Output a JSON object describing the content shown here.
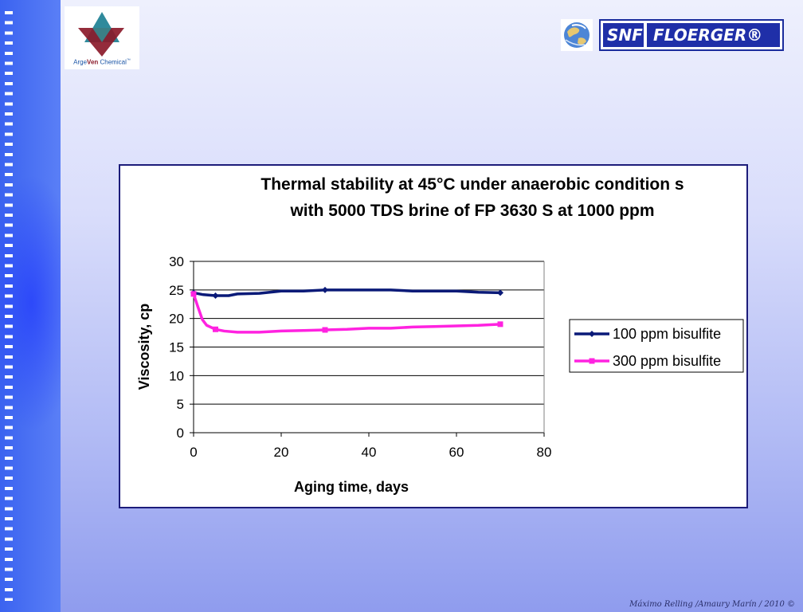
{
  "logos": {
    "left_brand_prefix": "Arge",
    "left_brand_mid": "Ven",
    "left_brand_suffix": " Chemical",
    "left_brand_mark": "™",
    "right_brand_a": "SNF",
    "right_brand_b": "FLOERGER®"
  },
  "footer": {
    "credit": "Máximo Relling /Amaury Marín / 2010 ©"
  },
  "colors": {
    "series1": "#0a1a78",
    "series2": "#ff22e0",
    "frame": "#1c1c7a"
  },
  "chart_data": {
    "type": "line",
    "title_line1": "Thermal stability at 45°C under anaerobic condition s",
    "title_line2": "with 5000 TDS brine of FP 3630 S at 1000 ppm",
    "xlabel": "Aging time, days",
    "ylabel": "Viscosity, cp",
    "xlim": [
      0,
      80
    ],
    "ylim": [
      0,
      30
    ],
    "xticks": [
      0,
      20,
      40,
      60,
      80
    ],
    "yticks": [
      0,
      5,
      10,
      15,
      20,
      25,
      30
    ],
    "grid": "horizontal",
    "legend": "right",
    "series": [
      {
        "name": "100 ppm bisulfite",
        "marker": "diamond",
        "x": [
          0,
          2,
          5,
          8,
          10,
          15,
          20,
          25,
          30,
          35,
          40,
          45,
          50,
          55,
          60,
          65,
          70
        ],
        "y": [
          24.5,
          24.2,
          24.0,
          24.0,
          24.3,
          24.4,
          24.8,
          24.8,
          25.0,
          25.0,
          25.0,
          25.0,
          24.8,
          24.8,
          24.8,
          24.6,
          24.5
        ],
        "marker_x": [
          0,
          5,
          30,
          70
        ],
        "marker_y": [
          24.5,
          24.0,
          25.0,
          24.5
        ]
      },
      {
        "name": "300 ppm bisulfite",
        "marker": "square",
        "x": [
          0,
          1,
          2,
          3,
          5,
          7,
          10,
          15,
          20,
          25,
          30,
          35,
          40,
          45,
          50,
          55,
          60,
          65,
          70
        ],
        "y": [
          24.3,
          22.0,
          19.8,
          18.8,
          18.1,
          17.8,
          17.6,
          17.6,
          17.8,
          17.9,
          18.0,
          18.1,
          18.3,
          18.3,
          18.5,
          18.6,
          18.7,
          18.8,
          19.0
        ],
        "marker_x": [
          0,
          5,
          30,
          70
        ],
        "marker_y": [
          24.3,
          18.1,
          18.0,
          19.0
        ]
      }
    ]
  }
}
